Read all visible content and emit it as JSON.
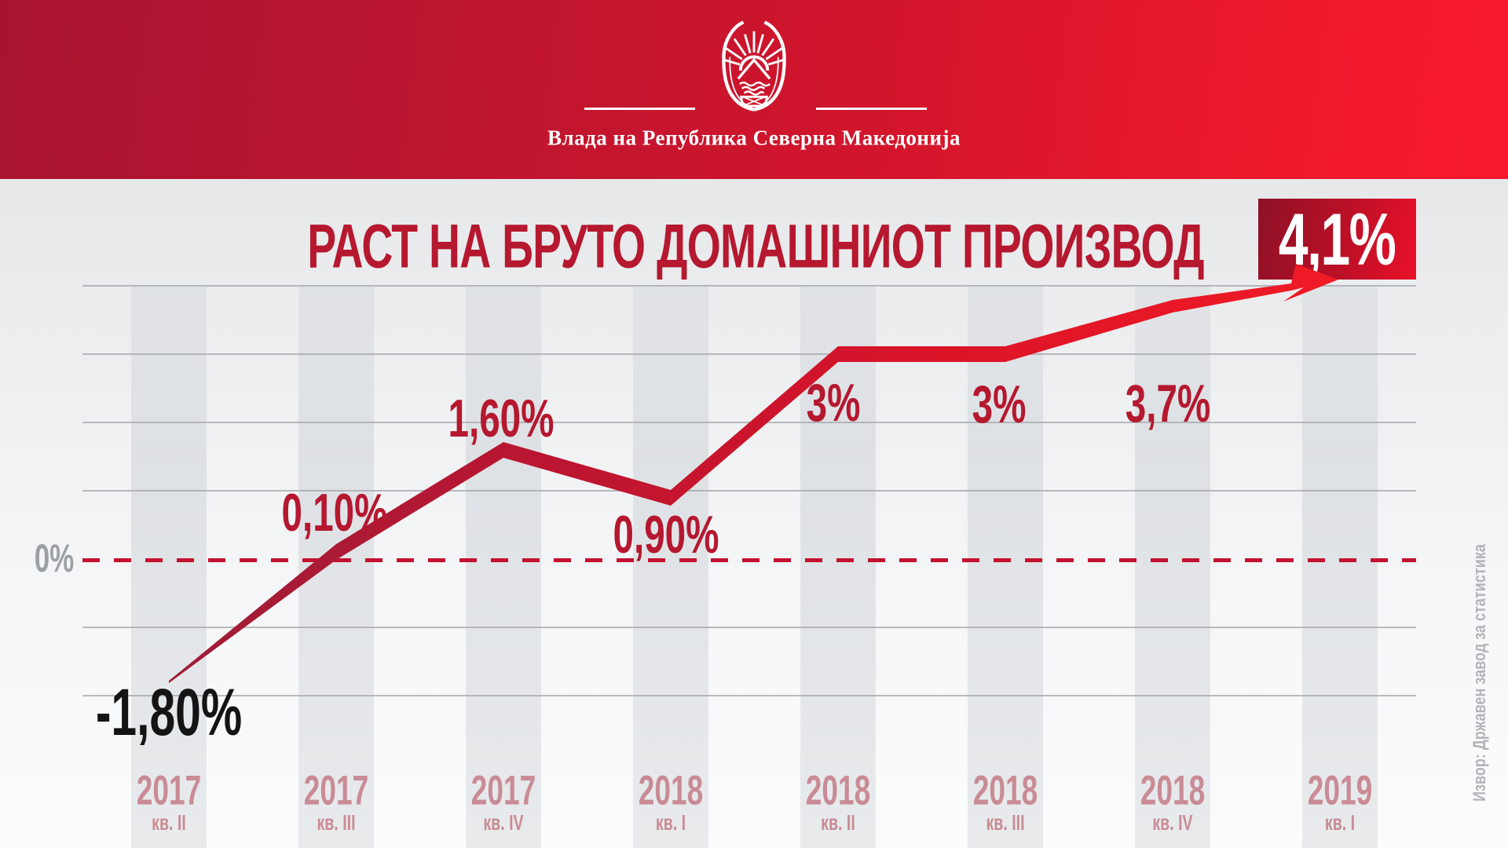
{
  "header": {
    "org_name": "Влада на Република Северна Македонија",
    "emblem": "coat-of-arms-north-macedonia",
    "bg_colors": [
      "#a81430",
      "#fa192c"
    ]
  },
  "chart": {
    "title": "РАСТ НА БРУТО ДОМАШНИОТ ПРОИЗВОД",
    "highlight_label": "4,1%",
    "zero_label": "0%",
    "source_note": "Извор:  Државен завод за статистика"
  },
  "colors": {
    "title": "#b5182f",
    "value_label": "#b5182f",
    "negative_value_label": "#141414",
    "quarter_label": "#c98b95",
    "zero_label": "#9ba0a5",
    "gridline": "#a7aaae",
    "zero_dash": "#c41130",
    "line_gradient": [
      "#9f1d37",
      "#bb1531",
      "#dd1428",
      "#f01b25"
    ],
    "highlight_bg": [
      "#8e1126",
      "#ea1129"
    ],
    "highlight_text": "#ffffff",
    "source": "#b1b5b9"
  },
  "chart_data": {
    "type": "line",
    "title": "РАСТ НА БРУТО ДОМАШНИОТ ПРОИЗВОД",
    "categories": [
      {
        "year": "2017",
        "quarter": "кв. II"
      },
      {
        "year": "2017",
        "quarter": "кв. III"
      },
      {
        "year": "2017",
        "quarter": "кв. IV"
      },
      {
        "year": "2018",
        "quarter": "кв. I"
      },
      {
        "year": "2018",
        "quarter": "кв. II"
      },
      {
        "year": "2018",
        "quarter": "кв. III"
      },
      {
        "year": "2018",
        "quarter": "кв. IV"
      },
      {
        "year": "2019",
        "quarter": "кв. I"
      }
    ],
    "values": [
      -1.8,
      0.1,
      1.6,
      0.9,
      3,
      3,
      3.7,
      4.1
    ],
    "value_labels": [
      "-1,80%",
      "0,10%",
      "1,60%",
      "0,90%",
      "3%",
      "3%",
      "3,7%",
      "4,1%"
    ],
    "ylim": [
      -2,
      4
    ],
    "gridline_step_pct": 1,
    "zero_line": "dashed",
    "grid": true,
    "legend": false,
    "last_point_annotation": "arrow-to-highlight-badge"
  }
}
